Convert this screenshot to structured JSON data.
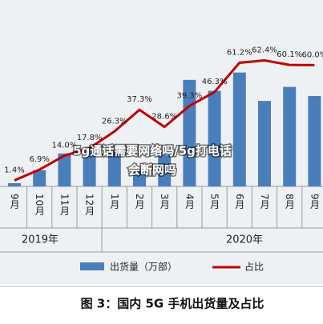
{
  "chart_data": {
    "type": "bar",
    "title": "图 3：国内 5G 手机出货量及占比",
    "overlay": [
      "5g通话需要网络吗/5g打电话",
      "会断网吗"
    ],
    "categories": [
      "9月",
      "10月",
      "11月",
      "12月",
      "1月",
      "2月",
      "3月",
      "4月",
      "5月",
      "6月",
      "7月",
      "8月",
      "9月"
    ],
    "groups": [
      "2019年",
      "2020年"
    ],
    "series": [
      {
        "name": "出货量（万部）",
        "color": "#4a7ebb",
        "values": [
          50,
          249,
          507,
          545,
          546,
          238,
          481,
          1638,
          1469,
          1751,
          1314,
          1530,
          1390
        ]
      },
      {
        "name": "占比",
        "color": "#c00000",
        "axis": "y2",
        "values": [
          1.4,
          6.9,
          14.0,
          17.8,
          26.3,
          37.3,
          28.6,
          39.3,
          46.3,
          61.2,
          62.4,
          60.1,
          60.0
        ],
        "value_labels": [
          "1.4%",
          "6.9%",
          "14.0%",
          "17.8%",
          "26.3%",
          "37.3%",
          "28.6%",
          "39.3%",
          "46.3%",
          "61.2%",
          "62.4%",
          "60.1%",
          "60.0%"
        ]
      }
    ]
  }
}
